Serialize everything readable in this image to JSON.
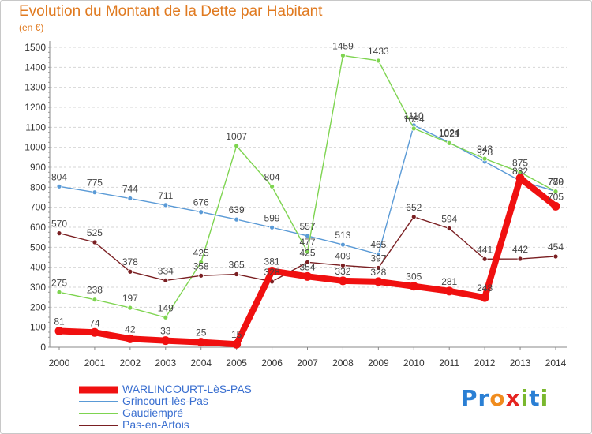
{
  "title": "Evolution du Montant de la Dette par Habitant",
  "subtitle": "(en €)",
  "logo": {
    "text": "Proxiti",
    "letters": [
      "P",
      "r",
      "o",
      "x",
      "i",
      "t",
      "i"
    ],
    "colors": [
      "#2a7fd4",
      "#2a7fd4",
      "#f08c1e",
      "#e52420",
      "#7ab82e",
      "#2a7fd4",
      "#7ab82e"
    ]
  },
  "chart_data": {
    "type": "line",
    "title": "Evolution du Montant de la Dette par Habitant",
    "ylabel": "(en €)",
    "xlabel": "",
    "x": [
      "2000",
      "2001",
      "2002",
      "2003",
      "2004",
      "2005",
      "2006",
      "2007",
      "2008",
      "2009",
      "2010",
      "2011",
      "2012",
      "2013",
      "2014"
    ],
    "yticks": [
      0,
      100,
      200,
      300,
      400,
      500,
      600,
      700,
      800,
      900,
      1000,
      1100,
      1200,
      1300,
      1400,
      1500
    ],
    "ylim": [
      0,
      1500
    ],
    "grid": "horizontal",
    "legend_position": "bottom-left",
    "series": [
      {
        "name": "WARLINCOURT-LèS-PAS",
        "color": "#f01010",
        "values": [
          81,
          74,
          42,
          33,
          25,
          15,
          381,
          354,
          332,
          328,
          305,
          281,
          248,
          845,
          705
        ],
        "labels": [
          "81",
          "74",
          "42",
          "33",
          "25",
          "15",
          "381",
          "354",
          "332",
          "328",
          "305",
          "281",
          "248",
          "",
          "705"
        ]
      },
      {
        "name": "Grincourt-lès-Pas",
        "color": "#5a9ad6",
        "values": [
          804,
          775,
          744,
          711,
          676,
          639,
          599,
          557,
          513,
          465,
          1110,
          1024,
          928,
          832,
          780
        ],
        "labels": [
          "804",
          "775",
          "744",
          "711",
          "676",
          "639",
          "599",
          "557",
          "513",
          "465",
          "1110",
          "1024",
          "928",
          "832",
          "780"
        ]
      },
      {
        "name": "Gaudiempré",
        "color": "#7ed450",
        "values": [
          275,
          238,
          197,
          149,
          425,
          1007,
          804,
          477,
          1459,
          1433,
          1094,
          1021,
          943,
          875,
          779
        ],
        "labels": [
          "275",
          "238",
          "197",
          "149",
          "425",
          "1007",
          "804",
          "477",
          "1459",
          "1433",
          "1094",
          "1021",
          "943",
          "875",
          "779"
        ]
      },
      {
        "name": "Pas-en-Artois",
        "color": "#7a1f22",
        "values": [
          570,
          525,
          378,
          334,
          358,
          365,
          328,
          425,
          409,
          397,
          652,
          594,
          441,
          442,
          454
        ],
        "labels": [
          "570",
          "525",
          "378",
          "334",
          "358",
          "365",
          "328",
          "425",
          "409",
          "397",
          "652",
          "594",
          "441",
          "442",
          "454"
        ]
      }
    ]
  }
}
